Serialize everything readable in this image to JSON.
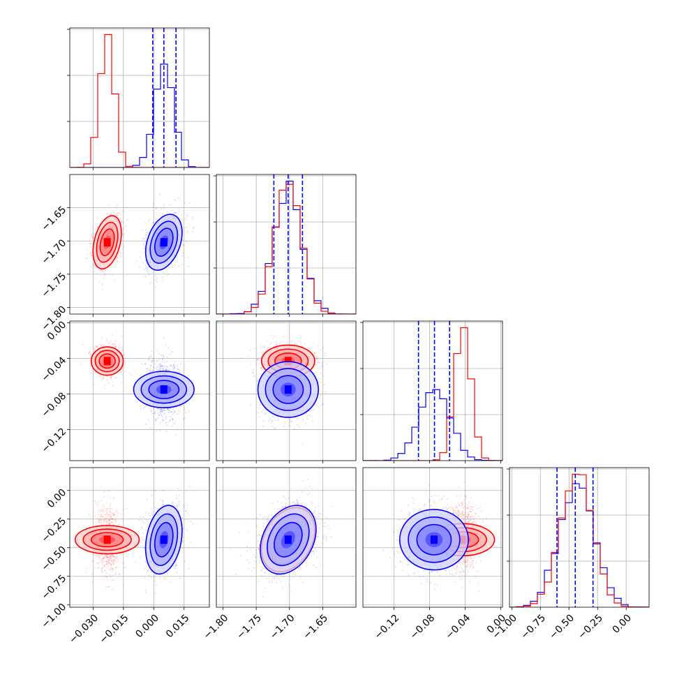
{
  "chart_data": {
    "type": "corner",
    "title": "",
    "series": [
      {
        "name": "",
        "color": "#ff0000",
        "mean": [
          -0.023,
          -1.702,
          -0.043,
          -0.43
        ],
        "std": [
          0.0035,
          0.02,
          0.009,
          0.14
        ],
        "corr": [
          [
            1,
            0.35,
            0,
            0
          ],
          [
            0.35,
            1,
            0,
            0.3
          ],
          [
            0,
            0,
            1,
            0
          ],
          [
            0,
            0.3,
            0,
            1
          ]
        ]
      },
      {
        "name": "",
        "color": "#0000ff",
        "mean": [
          0.005,
          -1.702,
          -0.075,
          -0.43
        ],
        "std": [
          0.0045,
          0.021,
          0.017,
          0.15
        ],
        "corr": [
          [
            1,
            0.35,
            0,
            0.25
          ],
          [
            0.35,
            1,
            0,
            0.3
          ],
          [
            0,
            0,
            1,
            0
          ],
          [
            0.25,
            0.3,
            0,
            1
          ]
        ]
      }
    ],
    "quantiles_color": "#0000ff",
    "quantiles": [
      [
        -0.0005,
        0.005,
        0.011
      ],
      [
        -1.7235,
        -1.702,
        -1.6805
      ],
      [
        -0.0925,
        -0.0745,
        -0.0575
      ],
      [
        -0.605,
        -0.445,
        -0.29
      ]
    ],
    "axes": [
      {
        "range": [
          -0.0415,
          0.0275
        ],
        "ticks": [
          -0.03,
          -0.015,
          0.0,
          0.015
        ],
        "ticklabels": [
          "−0.030",
          "−0.015",
          "0.000",
          "0.015"
        ]
      },
      {
        "range": [
          -1.81,
          -1.6
        ],
        "ticks": [
          -1.8,
          -1.75,
          -1.7,
          -1.65
        ],
        "ticklabels": [
          "−1.80",
          "−1.75",
          "−1.70",
          "−1.65"
        ]
      },
      {
        "range": [
          -0.155,
          0.002
        ],
        "ticks": [
          -0.12,
          -0.08,
          -0.04,
          0.0
        ],
        "ticklabels": [
          "−0.12",
          "−0.08",
          "−0.04",
          "0.00"
        ]
      },
      {
        "range": [
          -1.02,
          0.2
        ],
        "ticks": [
          -1.0,
          -0.75,
          -0.5,
          -0.25,
          0.0
        ],
        "ticklabels": [
          "−1.00",
          "−0.75",
          "−0.50",
          "−0.25",
          "0.00"
        ]
      }
    ]
  }
}
